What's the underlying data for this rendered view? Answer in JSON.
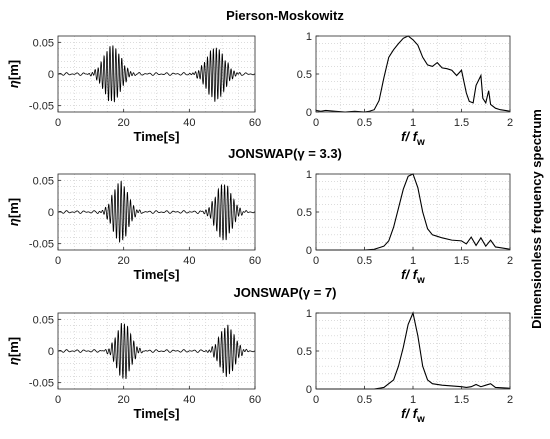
{
  "side_label": "Dimensionless frequency spectrum",
  "chart_data": [
    {
      "type": "line",
      "row": 0,
      "kind": "time",
      "title": "Pierson-Moskowitz",
      "xlabel": "Time[s]",
      "ylabel": "η[m]",
      "xlim": [
        0,
        60
      ],
      "ylim": [
        -0.06,
        0.06
      ],
      "xticks": [
        0,
        20,
        40,
        60
      ],
      "yticks": [
        -0.05,
        0,
        0.05
      ],
      "xtick_labels": [
        "0",
        "20",
        "40",
        "60"
      ],
      "ytick_labels": [
        "-0.05",
        "0",
        "0.05"
      ],
      "grid": true,
      "packets": [
        {
          "center": 16.5,
          "peak": 0.045,
          "width": 3.6,
          "period": 0.9
        },
        {
          "center": 48.0,
          "peak": 0.042,
          "width": 3.8,
          "period": 0.9
        }
      ]
    },
    {
      "type": "line",
      "row": 0,
      "kind": "spectrum",
      "xlabel": "f/ f_w",
      "ylabel": "",
      "xlim": [
        0,
        2
      ],
      "ylim": [
        0,
        1
      ],
      "xticks": [
        0,
        0.5,
        1,
        1.5,
        2
      ],
      "yticks": [
        0,
        0.5,
        1
      ],
      "xtick_labels": [
        "0",
        "0.5",
        "1",
        "1.5",
        "2"
      ],
      "ytick_labels": [
        "0",
        "0.5",
        "1"
      ],
      "grid": true,
      "x": [
        0,
        0.05,
        0.1,
        0.2,
        0.3,
        0.4,
        0.5,
        0.55,
        0.6,
        0.65,
        0.7,
        0.75,
        0.8,
        0.85,
        0.9,
        0.95,
        1.0,
        1.05,
        1.1,
        1.15,
        1.2,
        1.25,
        1.3,
        1.35,
        1.4,
        1.45,
        1.5,
        1.55,
        1.58,
        1.62,
        1.65,
        1.7,
        1.72,
        1.75,
        1.78,
        1.8,
        1.85,
        1.9,
        1.95,
        2.0
      ],
      "y": [
        0.02,
        0.01,
        0.02,
        0.01,
        0.0,
        0.01,
        0.0,
        0.01,
        0.03,
        0.15,
        0.45,
        0.72,
        0.82,
        0.9,
        0.97,
        1.0,
        0.95,
        0.88,
        0.72,
        0.62,
        0.6,
        0.65,
        0.58,
        0.57,
        0.55,
        0.48,
        0.55,
        0.25,
        0.14,
        0.12,
        0.35,
        0.48,
        0.18,
        0.12,
        0.28,
        0.1,
        0.05,
        0.03,
        0.02,
        0.01
      ]
    },
    {
      "type": "line",
      "row": 1,
      "kind": "time",
      "title": "JONSWAP(γ = 3.3)",
      "xlabel": "Time[s]",
      "ylabel": "η[m]",
      "xlim": [
        0,
        60
      ],
      "ylim": [
        -0.06,
        0.06
      ],
      "xticks": [
        0,
        20,
        40,
        60
      ],
      "yticks": [
        -0.05,
        0,
        0.05
      ],
      "xtick_labels": [
        "0",
        "20",
        "40",
        "60"
      ],
      "ytick_labels": [
        "-0.05",
        "0",
        "0.05"
      ],
      "grid": true,
      "packets": [
        {
          "center": 19.0,
          "peak": 0.048,
          "width": 3.2,
          "period": 0.95
        },
        {
          "center": 50.5,
          "peak": 0.045,
          "width": 3.4,
          "period": 0.95
        }
      ]
    },
    {
      "type": "line",
      "row": 1,
      "kind": "spectrum",
      "xlabel": "f/ f_w",
      "ylabel": "",
      "xlim": [
        0,
        2
      ],
      "ylim": [
        0,
        1
      ],
      "xticks": [
        0,
        0.5,
        1,
        1.5,
        2
      ],
      "yticks": [
        0,
        0.5,
        1
      ],
      "xtick_labels": [
        "0",
        "0.5",
        "1",
        "1.5",
        "2"
      ],
      "ytick_labels": [
        "0",
        "0.5",
        "1"
      ],
      "grid": true,
      "x": [
        0,
        0.5,
        0.6,
        0.7,
        0.75,
        0.8,
        0.85,
        0.9,
        0.95,
        1.0,
        1.05,
        1.1,
        1.15,
        1.2,
        1.25,
        1.3,
        1.4,
        1.5,
        1.55,
        1.6,
        1.65,
        1.7,
        1.75,
        1.8,
        1.85,
        1.9,
        2.0
      ],
      "y": [
        0.0,
        0.0,
        0.01,
        0.05,
        0.12,
        0.3,
        0.55,
        0.8,
        0.97,
        1.0,
        0.82,
        0.5,
        0.28,
        0.2,
        0.18,
        0.16,
        0.13,
        0.12,
        0.08,
        0.17,
        0.06,
        0.16,
        0.05,
        0.13,
        0.04,
        0.03,
        0.01
      ]
    },
    {
      "type": "line",
      "row": 2,
      "kind": "time",
      "title": "JONSWAP(γ = 7)",
      "xlabel": "Time[s]",
      "ylabel": "η[m]",
      "xlim": [
        0,
        60
      ],
      "ylim": [
        -0.06,
        0.06
      ],
      "xticks": [
        0,
        20,
        40,
        60
      ],
      "yticks": [
        -0.05,
        0,
        0.05
      ],
      "xtick_labels": [
        "0",
        "20",
        "40",
        "60"
      ],
      "ytick_labels": [
        "-0.05",
        "0",
        "0.05"
      ],
      "grid": true,
      "packets": [
        {
          "center": 20.0,
          "peak": 0.045,
          "width": 3.0,
          "period": 0.95
        },
        {
          "center": 51.5,
          "peak": 0.04,
          "width": 3.2,
          "period": 0.95
        }
      ]
    },
    {
      "type": "line",
      "row": 2,
      "kind": "spectrum",
      "xlabel": "f/ f_w",
      "ylabel": "",
      "xlim": [
        0,
        2
      ],
      "ylim": [
        0,
        1
      ],
      "xticks": [
        0,
        0.5,
        1,
        1.5,
        2
      ],
      "yticks": [
        0,
        0.5,
        1
      ],
      "xtick_labels": [
        "0",
        "0.5",
        "1",
        "1.5",
        "2"
      ],
      "ytick_labels": [
        "0",
        "0.5",
        "1"
      ],
      "grid": true,
      "x": [
        0,
        0.6,
        0.7,
        0.8,
        0.85,
        0.9,
        0.95,
        1.0,
        1.05,
        1.1,
        1.15,
        1.2,
        1.3,
        1.4,
        1.5,
        1.55,
        1.6,
        1.65,
        1.7,
        1.75,
        1.8,
        1.85,
        2.0
      ],
      "y": [
        0.0,
        0.0,
        0.02,
        0.12,
        0.3,
        0.55,
        0.85,
        1.0,
        0.7,
        0.3,
        0.12,
        0.07,
        0.05,
        0.04,
        0.03,
        0.02,
        0.03,
        0.06,
        0.03,
        0.05,
        0.07,
        0.02,
        0.01
      ]
    }
  ]
}
